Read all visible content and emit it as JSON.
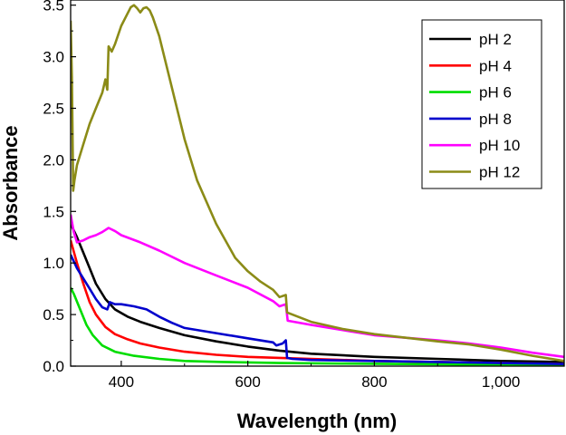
{
  "chart_data": {
    "type": "line",
    "title": "",
    "xlabel": "Wavelength (nm)",
    "ylabel": "Absorbance",
    "xlim": [
      320,
      1100
    ],
    "ylim": [
      0,
      3.55
    ],
    "xticks": [
      400,
      600,
      800,
      1000
    ],
    "xtick_labels": [
      "400",
      "600",
      "800",
      "1,000"
    ],
    "yticks": [
      0,
      0.5,
      1.0,
      1.5,
      2.0,
      2.5,
      3.0,
      3.5
    ],
    "ytick_labels": [
      "0.0",
      "0.5",
      "1.0",
      "1.5",
      "2.0",
      "2.5",
      "3.0",
      "3.5"
    ],
    "grid": false,
    "legend_position": "top-right",
    "series": [
      {
        "name": "pH 2",
        "color": "#000000",
        "x": [
          320,
          330,
          340,
          350,
          360,
          375,
          390,
          410,
          430,
          460,
          500,
          550,
          600,
          650,
          700,
          800,
          900,
          1000,
          1100
        ],
        "y": [
          1.38,
          1.25,
          1.1,
          0.95,
          0.8,
          0.65,
          0.55,
          0.48,
          0.43,
          0.37,
          0.3,
          0.24,
          0.19,
          0.15,
          0.12,
          0.09,
          0.07,
          0.05,
          0.04
        ]
      },
      {
        "name": "pH 4",
        "color": "#ff0000",
        "x": [
          320,
          330,
          340,
          350,
          360,
          375,
          390,
          410,
          430,
          460,
          500,
          550,
          600,
          650,
          700,
          800,
          900,
          1000,
          1100
        ],
        "y": [
          1.22,
          1.0,
          0.8,
          0.62,
          0.5,
          0.38,
          0.31,
          0.26,
          0.22,
          0.18,
          0.14,
          0.11,
          0.09,
          0.08,
          0.07,
          0.05,
          0.04,
          0.03,
          0.02
        ]
      },
      {
        "name": "pH 6",
        "color": "#00dd00",
        "x": [
          320,
          325,
          335,
          345,
          355,
          370,
          390,
          420,
          460,
          500,
          560,
          650,
          750,
          850,
          950,
          1000,
          1100
        ],
        "y": [
          0.76,
          0.7,
          0.55,
          0.4,
          0.3,
          0.2,
          0.14,
          0.1,
          0.07,
          0.05,
          0.04,
          0.03,
          0.025,
          0.02,
          0.015,
          0.01,
          0.01
        ]
      },
      {
        "name": "pH 8",
        "color": "#0000cc",
        "x": [
          320,
          330,
          340,
          350,
          360,
          370,
          378,
          382,
          390,
          400,
          420,
          440,
          460,
          480,
          500,
          550,
          600,
          640,
          645,
          655,
          660,
          662,
          670,
          700,
          800,
          900,
          1000,
          1100
        ],
        "y": [
          1.08,
          0.95,
          0.85,
          0.75,
          0.65,
          0.57,
          0.55,
          0.62,
          0.6,
          0.6,
          0.58,
          0.55,
          0.48,
          0.42,
          0.37,
          0.32,
          0.27,
          0.23,
          0.2,
          0.22,
          0.25,
          0.08,
          0.07,
          0.06,
          0.05,
          0.04,
          0.03,
          0.02
        ]
      },
      {
        "name": "pH 10",
        "color": "#ff00ff",
        "x": [
          320,
          325,
          330,
          340,
          350,
          360,
          370,
          380,
          390,
          400,
          430,
          460,
          500,
          550,
          600,
          640,
          650,
          660,
          663,
          700,
          750,
          800,
          900,
          950,
          1000,
          1050,
          1100
        ],
        "y": [
          1.47,
          1.3,
          1.2,
          1.22,
          1.25,
          1.27,
          1.3,
          1.34,
          1.31,
          1.27,
          1.2,
          1.12,
          1.0,
          0.88,
          0.76,
          0.63,
          0.58,
          0.6,
          0.44,
          0.4,
          0.35,
          0.3,
          0.25,
          0.22,
          0.18,
          0.13,
          0.09
        ]
      },
      {
        "name": "pH 12",
        "color": "#8b8b17",
        "x": [
          320,
          322,
          324,
          326,
          330,
          340,
          350,
          360,
          370,
          375,
          378,
          380,
          385,
          390,
          400,
          410,
          415,
          420,
          425,
          430,
          435,
          440,
          445,
          450,
          460,
          480,
          500,
          520,
          550,
          580,
          600,
          620,
          640,
          650,
          660,
          662,
          700,
          750,
          800,
          900,
          950,
          1000,
          1050,
          1100
        ],
        "y": [
          3.35,
          2.8,
          1.7,
          1.8,
          1.95,
          2.15,
          2.35,
          2.5,
          2.65,
          2.78,
          2.68,
          3.1,
          3.05,
          3.12,
          3.3,
          3.42,
          3.48,
          3.5,
          3.47,
          3.43,
          3.47,
          3.48,
          3.45,
          3.38,
          3.2,
          2.7,
          2.2,
          1.8,
          1.38,
          1.05,
          0.92,
          0.82,
          0.74,
          0.67,
          0.69,
          0.52,
          0.43,
          0.36,
          0.31,
          0.24,
          0.21,
          0.16,
          0.1,
          0.05
        ]
      }
    ]
  }
}
